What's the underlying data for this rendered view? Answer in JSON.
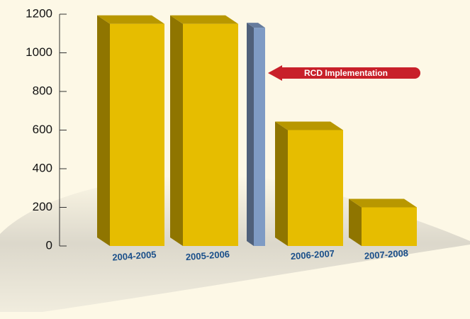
{
  "chart_data": {
    "type": "bar3d",
    "categories": [
      "2004-2005",
      "2005-2006",
      null,
      "2006-2007",
      "2007-2008"
    ],
    "values": [
      1150,
      1150,
      1130,
      600,
      200
    ],
    "colors": [
      "#e6bd00",
      "#e6bd00",
      "#7f9bc4",
      "#e6bd00",
      "#e6bd00"
    ],
    "ylim": [
      0,
      1200
    ],
    "yticks": [
      0,
      200,
      400,
      600,
      800,
      1000,
      1200
    ],
    "annotation": "RCD Implementation"
  }
}
